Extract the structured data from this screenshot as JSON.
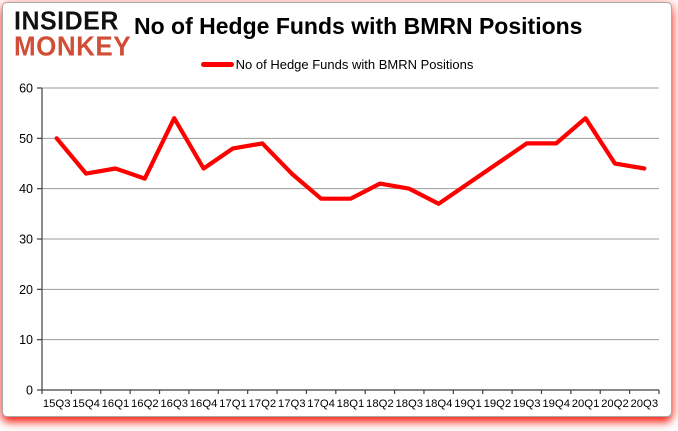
{
  "branding": {
    "logo_line1": "INSIDER",
    "logo_line2": "MONKEY"
  },
  "header": {
    "title": "No of Hedge Funds with BMRN Positions"
  },
  "legend": {
    "label": "No of Hedge Funds with BMRN Positions"
  },
  "colors": {
    "series": "#ff0000",
    "logo_black": "#111111",
    "logo_red": "#d14e36",
    "gridline": "#9b9b9b",
    "axis": "#404040",
    "text": "#000000",
    "glow": "#f81c10"
  },
  "chart_data": {
    "type": "line",
    "title": "No of Hedge Funds with BMRN Positions",
    "categories": [
      "15Q3",
      "15Q4",
      "16Q1",
      "16Q2",
      "16Q3",
      "16Q4",
      "17Q1",
      "17Q2",
      "17Q3",
      "17Q4",
      "18Q1",
      "18Q2",
      "18Q3",
      "18Q4",
      "19Q1",
      "19Q2",
      "19Q3",
      "19Q4",
      "20Q1",
      "20Q2",
      "20Q3"
    ],
    "series": [
      {
        "name": "No of Hedge Funds with BMRN Positions",
        "color": "#ff0000",
        "values": [
          50,
          43,
          44,
          42,
          54,
          44,
          48,
          49,
          43,
          38,
          38,
          41,
          40,
          37,
          41,
          45,
          49,
          49,
          54,
          45,
          44
        ]
      }
    ],
    "ylim": [
      0,
      60
    ],
    "yticks": [
      0,
      10,
      20,
      30,
      40,
      50,
      60
    ],
    "grid": true,
    "legend_position": "top"
  }
}
